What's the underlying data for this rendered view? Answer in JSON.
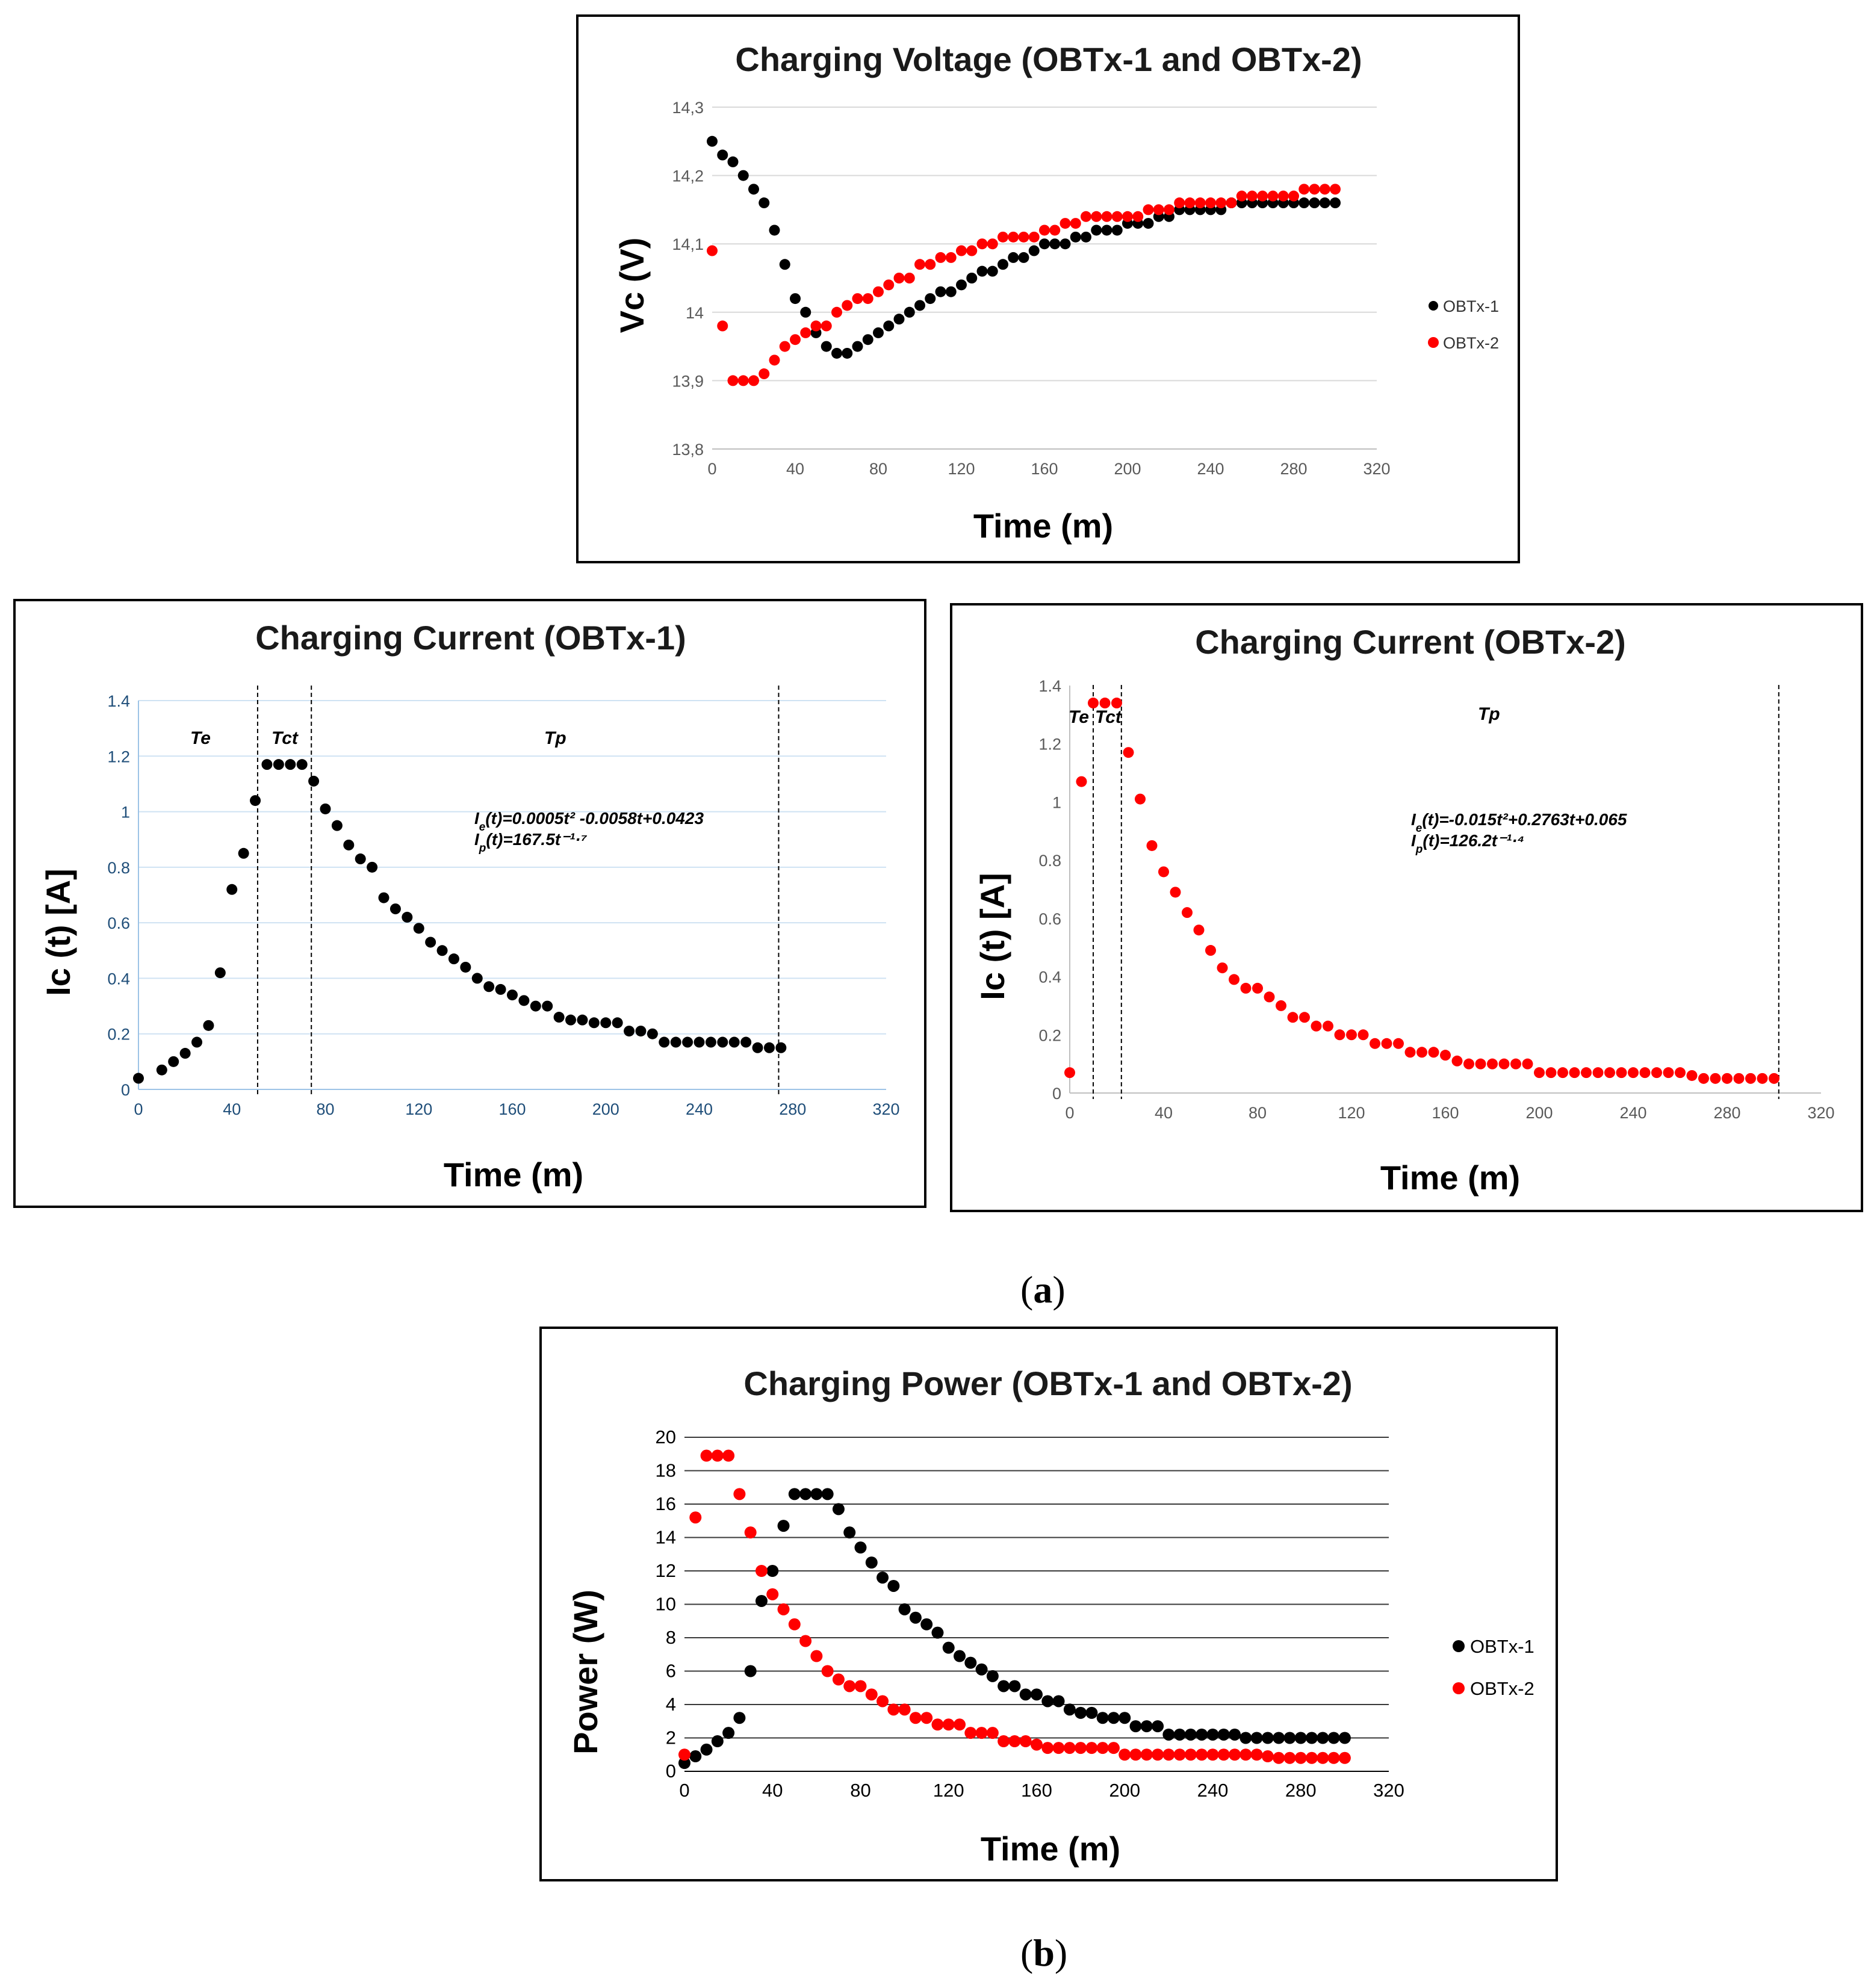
{
  "chart_data": [
    {
      "id": "voltage",
      "type": "scatter",
      "title": "Charging Voltage (OBTx-1 and OBTx-2)",
      "xlabel": "Time (m)",
      "ylabel": "Vc (V)",
      "xlim": [
        0,
        320
      ],
      "ylim": [
        13.8,
        14.3
      ],
      "xticks": [
        "0",
        "40",
        "80",
        "120",
        "160",
        "200",
        "240",
        "280",
        "320"
      ],
      "yticks": [
        "13,8",
        "13,9",
        "14",
        "14,1",
        "14,2",
        "14,3"
      ],
      "grid": true,
      "legend_position": "right",
      "series": [
        {
          "name": "OBTx-1",
          "color": "#000000",
          "x": [
            0,
            5,
            10,
            15,
            20,
            25,
            30,
            35,
            40,
            45,
            50,
            55,
            60,
            65,
            70,
            75,
            80,
            85,
            90,
            95,
            100,
            105,
            110,
            115,
            120,
            125,
            130,
            135,
            140,
            145,
            150,
            155,
            160,
            165,
            170,
            175,
            180,
            185,
            190,
            195,
            200,
            205,
            210,
            215,
            220,
            225,
            230,
            235,
            240,
            245,
            250,
            255,
            260,
            265,
            270,
            275,
            280,
            285,
            290,
            295,
            300
          ],
          "y": [
            14.25,
            14.23,
            14.22,
            14.2,
            14.18,
            14.16,
            14.12,
            14.07,
            14.02,
            14.0,
            13.97,
            13.95,
            13.94,
            13.94,
            13.95,
            13.96,
            13.97,
            13.98,
            13.99,
            14.0,
            14.01,
            14.02,
            14.03,
            14.03,
            14.04,
            14.05,
            14.06,
            14.06,
            14.07,
            14.08,
            14.08,
            14.09,
            14.1,
            14.1,
            14.1,
            14.11,
            14.11,
            14.12,
            14.12,
            14.12,
            14.13,
            14.13,
            14.13,
            14.14,
            14.14,
            14.15,
            14.15,
            14.15,
            14.15,
            14.15,
            14.16,
            14.16,
            14.16,
            14.16,
            14.16,
            14.16,
            14.16,
            14.16,
            14.16,
            14.16,
            14.16
          ]
        },
        {
          "name": "OBTx-2",
          "color": "#ff0000",
          "x": [
            0,
            5,
            10,
            15,
            20,
            25,
            30,
            35,
            40,
            45,
            50,
            55,
            60,
            65,
            70,
            75,
            80,
            85,
            90,
            95,
            100,
            105,
            110,
            115,
            120,
            125,
            130,
            135,
            140,
            145,
            150,
            155,
            160,
            165,
            170,
            175,
            180,
            185,
            190,
            195,
            200,
            205,
            210,
            215,
            220,
            225,
            230,
            235,
            240,
            245,
            250,
            255,
            260,
            265,
            270,
            275,
            280,
            285,
            290,
            295,
            300
          ],
          "y": [
            14.09,
            13.98,
            13.9,
            13.9,
            13.9,
            13.91,
            13.93,
            13.95,
            13.96,
            13.97,
            13.98,
            13.98,
            14.0,
            14.01,
            14.02,
            14.02,
            14.03,
            14.04,
            14.05,
            14.05,
            14.07,
            14.07,
            14.08,
            14.08,
            14.09,
            14.09,
            14.1,
            14.1,
            14.11,
            14.11,
            14.11,
            14.11,
            14.12,
            14.12,
            14.13,
            14.13,
            14.14,
            14.14,
            14.14,
            14.14,
            14.14,
            14.14,
            14.15,
            14.15,
            14.15,
            14.16,
            14.16,
            14.16,
            14.16,
            14.16,
            14.16,
            14.17,
            14.17,
            14.17,
            14.17,
            14.17,
            14.17,
            14.18,
            14.18,
            14.18,
            14.18
          ]
        }
      ]
    },
    {
      "id": "current1",
      "type": "scatter",
      "title": "Charging Current (OBTx-1)",
      "xlabel": "Time (m)",
      "ylabel": "Ic (t) [A]",
      "xlim": [
        0,
        320
      ],
      "ylim": [
        0,
        1.4
      ],
      "xticks": [
        "0",
        "40",
        "80",
        "120",
        "160",
        "200",
        "240",
        "280",
        "320"
      ],
      "yticks": [
        "0",
        "0.2",
        "0.4",
        "0.6",
        "0.8",
        "1",
        "1.2",
        "1.4"
      ],
      "grid": true,
      "phases": [
        "Te",
        "Tct",
        "Tp"
      ],
      "phase_boundaries": [
        51,
        74,
        274
      ],
      "equations": {
        "ie": "(t)=0.0005t² -0.0058t+0.0423",
        "ip": "(t)=167.5t⁻¹·⁷"
      },
      "series": [
        {
          "name": "OBTx-1",
          "color": "#000000",
          "x": [
            0,
            10,
            15,
            20,
            25,
            30,
            35,
            40,
            45,
            50,
            55,
            60,
            65,
            70,
            75,
            80,
            85,
            90,
            95,
            100,
            105,
            110,
            115,
            120,
            125,
            130,
            135,
            140,
            145,
            150,
            155,
            160,
            165,
            170,
            175,
            180,
            185,
            190,
            195,
            200,
            205,
            210,
            215,
            220,
            225,
            230,
            235,
            240,
            245,
            250,
            255,
            260,
            265,
            270,
            275
          ],
          "y": [
            0.04,
            0.07,
            0.1,
            0.13,
            0.17,
            0.23,
            0.42,
            0.72,
            0.85,
            1.04,
            1.17,
            1.17,
            1.17,
            1.17,
            1.11,
            1.01,
            0.95,
            0.88,
            0.83,
            0.8,
            0.69,
            0.65,
            0.62,
            0.58,
            0.53,
            0.5,
            0.47,
            0.44,
            0.4,
            0.37,
            0.36,
            0.34,
            0.32,
            0.3,
            0.3,
            0.26,
            0.25,
            0.25,
            0.24,
            0.24,
            0.24,
            0.21,
            0.21,
            0.2,
            0.17,
            0.17,
            0.17,
            0.17,
            0.17,
            0.17,
            0.17,
            0.17,
            0.15,
            0.15,
            0.15
          ]
        }
      ]
    },
    {
      "id": "current2",
      "type": "scatter",
      "title": "Charging Current (OBTx-2)",
      "xlabel": "Time (m)",
      "ylabel": "Ic (t) [A]",
      "xlim": [
        0,
        320
      ],
      "ylim": [
        0,
        1.4
      ],
      "xticks": [
        "0",
        "40",
        "80",
        "120",
        "160",
        "200",
        "240",
        "280",
        "320"
      ],
      "yticks": [
        "0",
        "0.2",
        "0.4",
        "0.6",
        "0.8",
        "1",
        "1.2",
        "1.4"
      ],
      "grid": false,
      "phases": [
        "Te",
        "Tct",
        "Tp"
      ],
      "phase_boundaries": [
        10,
        22,
        302
      ],
      "equations": {
        "ie": "(t)=-0.015t²+0.2763t+0.065",
        "ip": "(t)=126.2t⁻¹·⁴"
      },
      "series": [
        {
          "name": "OBTx-2",
          "color": "#ff0000",
          "x": [
            0,
            5,
            10,
            15,
            20,
            25,
            30,
            35,
            40,
            45,
            50,
            55,
            60,
            65,
            70,
            75,
            80,
            85,
            90,
            95,
            100,
            105,
            110,
            115,
            120,
            125,
            130,
            135,
            140,
            145,
            150,
            155,
            160,
            165,
            170,
            175,
            180,
            185,
            190,
            195,
            200,
            205,
            210,
            215,
            220,
            225,
            230,
            235,
            240,
            245,
            250,
            255,
            260,
            265,
            270,
            275,
            280,
            285,
            290,
            295,
            300
          ],
          "y": [
            0.07,
            1.07,
            1.34,
            1.34,
            1.34,
            1.17,
            1.01,
            0.85,
            0.76,
            0.69,
            0.62,
            0.56,
            0.49,
            0.43,
            0.39,
            0.36,
            0.36,
            0.33,
            0.3,
            0.26,
            0.26,
            0.23,
            0.23,
            0.2,
            0.2,
            0.2,
            0.17,
            0.17,
            0.17,
            0.14,
            0.14,
            0.14,
            0.13,
            0.11,
            0.1,
            0.1,
            0.1,
            0.1,
            0.1,
            0.1,
            0.07,
            0.07,
            0.07,
            0.07,
            0.07,
            0.07,
            0.07,
            0.07,
            0.07,
            0.07,
            0.07,
            0.07,
            0.07,
            0.06,
            0.05,
            0.05,
            0.05,
            0.05,
            0.05,
            0.05,
            0.05
          ]
        }
      ]
    },
    {
      "id": "power",
      "type": "scatter",
      "title": "Charging Power (OBTx-1 and OBTx-2)",
      "xlabel": "Time (m)",
      "ylabel": "Power  (W)",
      "xlim": [
        0,
        320
      ],
      "ylim": [
        0,
        20
      ],
      "xticks": [
        "0",
        "40",
        "80",
        "120",
        "160",
        "200",
        "240",
        "280",
        "320"
      ],
      "yticks": [
        "0",
        "2",
        "4",
        "6",
        "8",
        "10",
        "12",
        "14",
        "16",
        "18",
        "20"
      ],
      "grid": true,
      "legend_position": "right",
      "series": [
        {
          "name": "OBTx-1",
          "color": "#000000",
          "x": [
            0,
            5,
            10,
            15,
            20,
            25,
            30,
            35,
            40,
            45,
            50,
            55,
            60,
            65,
            70,
            75,
            80,
            85,
            90,
            95,
            100,
            105,
            110,
            115,
            120,
            125,
            130,
            135,
            140,
            145,
            150,
            155,
            160,
            165,
            170,
            175,
            180,
            185,
            190,
            195,
            200,
            205,
            210,
            215,
            220,
            225,
            230,
            235,
            240,
            245,
            250,
            255,
            260,
            265,
            270,
            275,
            280,
            285,
            290,
            295,
            300
          ],
          "y": [
            0.5,
            0.9,
            1.3,
            1.8,
            2.3,
            3.2,
            6.0,
            10.2,
            12.0,
            14.7,
            16.6,
            16.6,
            16.6,
            16.6,
            15.7,
            14.3,
            13.4,
            12.5,
            11.6,
            11.1,
            9.7,
            9.2,
            8.8,
            8.3,
            7.4,
            6.9,
            6.5,
            6.1,
            5.7,
            5.1,
            5.1,
            4.6,
            4.6,
            4.2,
            4.2,
            3.7,
            3.5,
            3.5,
            3.2,
            3.2,
            3.2,
            2.7,
            2.7,
            2.7,
            2.2,
            2.2,
            2.2,
            2.2,
            2.2,
            2.2,
            2.2,
            2.0,
            2.0,
            2.0,
            2.0,
            2.0,
            2.0,
            2.0,
            2.0,
            2.0,
            2.0
          ]
        },
        {
          "name": "OBTx-2",
          "color": "#ff0000",
          "x": [
            0,
            5,
            10,
            15,
            20,
            25,
            30,
            35,
            40,
            45,
            50,
            55,
            60,
            65,
            70,
            75,
            80,
            85,
            90,
            95,
            100,
            105,
            110,
            115,
            120,
            125,
            130,
            135,
            140,
            145,
            150,
            155,
            160,
            165,
            170,
            175,
            180,
            185,
            190,
            195,
            200,
            205,
            210,
            215,
            220,
            225,
            230,
            235,
            240,
            245,
            250,
            255,
            260,
            265,
            270,
            275,
            280,
            285,
            290,
            295,
            300
          ],
          "y": [
            1.0,
            15.2,
            18.9,
            18.9,
            18.9,
            16.6,
            14.3,
            12.0,
            10.6,
            9.7,
            8.8,
            7.8,
            6.9,
            6.0,
            5.5,
            5.1,
            5.1,
            4.6,
            4.2,
            3.7,
            3.7,
            3.2,
            3.2,
            2.8,
            2.8,
            2.8,
            2.3,
            2.3,
            2.3,
            1.8,
            1.8,
            1.8,
            1.6,
            1.4,
            1.4,
            1.4,
            1.4,
            1.4,
            1.4,
            1.4,
            1.0,
            1.0,
            1.0,
            1.0,
            1.0,
            1.0,
            1.0,
            1.0,
            1.0,
            1.0,
            1.0,
            1.0,
            1.0,
            0.9,
            0.8,
            0.8,
            0.8,
            0.8,
            0.8,
            0.8,
            0.8
          ]
        }
      ]
    }
  ],
  "captions": {
    "a": "a",
    "b": "b"
  }
}
